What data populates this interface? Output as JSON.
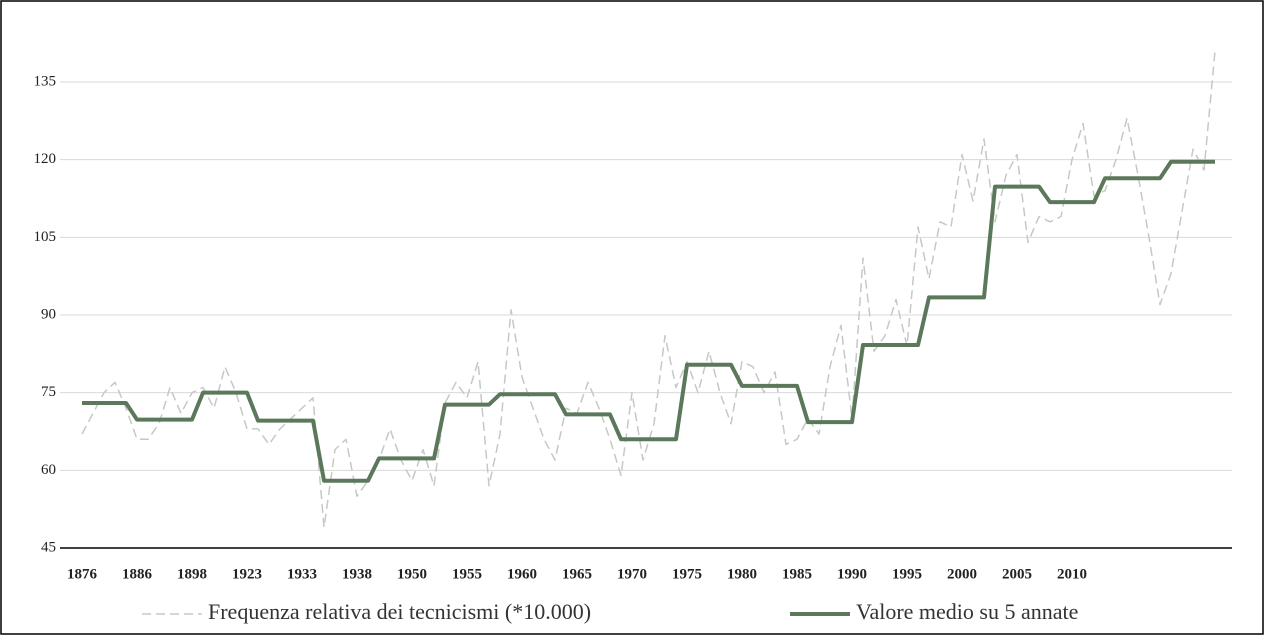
{
  "chart_data": {
    "type": "line",
    "categories": [
      "1876",
      null,
      null,
      null,
      null,
      "1886",
      null,
      null,
      null,
      null,
      "1898",
      null,
      null,
      null,
      null,
      "1923",
      null,
      null,
      null,
      null,
      "1933",
      null,
      null,
      null,
      null,
      "1938",
      null,
      null,
      null,
      null,
      "1950",
      null,
      null,
      null,
      null,
      "1955",
      null,
      null,
      null,
      null,
      "1960",
      null,
      null,
      null,
      null,
      "1965",
      null,
      null,
      null,
      null,
      "1970",
      null,
      null,
      null,
      null,
      "1975",
      null,
      null,
      null,
      null,
      "1980",
      null,
      null,
      null,
      null,
      "1985",
      null,
      null,
      null,
      null,
      "1990",
      null,
      null,
      null,
      null,
      "1995",
      null,
      null,
      null,
      null,
      "2000",
      null,
      null,
      null,
      null,
      "2005",
      null,
      null,
      null,
      null,
      "2010",
      null,
      null,
      null,
      null,
      null,
      null,
      null,
      null,
      null,
      null,
      null,
      null,
      null
    ],
    "series": [
      {
        "name": "Frequenza relativa dei tecnicismi (*10.000)",
        "color": "#c3cac3",
        "dashed": true,
        "values": [
          67,
          71,
          75,
          77,
          72,
          66,
          66,
          69,
          76,
          71,
          75,
          76,
          72,
          80,
          75,
          68,
          68,
          65,
          68,
          70,
          72,
          74,
          49,
          64,
          66,
          55,
          58,
          62,
          68,
          62,
          58,
          64,
          57,
          73,
          77,
          74,
          81,
          57,
          67,
          91,
          78,
          72,
          66,
          62,
          72,
          71,
          77,
          72,
          66,
          59,
          75,
          62,
          69,
          86,
          76,
          81,
          75,
          83,
          75,
          69,
          81,
          80,
          75,
          79,
          65,
          66,
          70,
          67,
          80,
          88,
          70,
          101,
          83,
          86,
          93,
          84,
          107,
          97,
          108,
          107,
          121,
          112,
          124,
          108,
          117,
          121,
          104,
          109,
          108,
          109,
          120,
          127,
          113,
          114,
          120,
          128,
          117,
          105,
          92,
          98,
          110,
          122,
          118,
          141
        ]
      },
      {
        "name": "Valore medio su 5 annate",
        "color": "#5b785b",
        "dashed": false,
        "values": [
          73,
          73,
          73,
          73,
          73,
          69.8,
          69.8,
          69.8,
          69.8,
          69.8,
          69.8,
          75,
          75,
          75,
          75,
          75,
          69.6,
          69.6,
          69.6,
          69.6,
          69.6,
          69.6,
          58,
          58,
          58,
          58,
          58,
          62.3,
          62.3,
          62.3,
          62.3,
          62.3,
          62.3,
          72.7,
          72.7,
          72.7,
          72.7,
          72.7,
          74.7,
          74.7,
          74.7,
          74.7,
          74.7,
          74.7,
          70.8,
          70.8,
          70.8,
          70.8,
          70.8,
          66,
          66,
          66,
          66,
          66,
          66,
          80.4,
          80.4,
          80.4,
          80.4,
          80.4,
          76.3,
          76.3,
          76.3,
          76.3,
          76.3,
          76.3,
          69.3,
          69.3,
          69.3,
          69.3,
          69.3,
          84.2,
          84.2,
          84.2,
          84.2,
          84.2,
          84.2,
          93.4,
          93.4,
          93.4,
          93.4,
          93.4,
          93.4,
          114.8,
          114.8,
          114.8,
          114.8,
          114.8,
          111.8,
          111.8,
          111.8,
          111.8,
          111.8,
          116.4,
          116.4,
          116.4,
          116.4,
          116.4,
          116.4,
          119.6,
          119.6,
          119.6,
          119.6,
          119.6
        ]
      }
    ],
    "ylim": [
      45,
      150
    ],
    "yticks": [
      45,
      60,
      75,
      90,
      105,
      120,
      135
    ],
    "grid": true,
    "legend": "bottom"
  }
}
